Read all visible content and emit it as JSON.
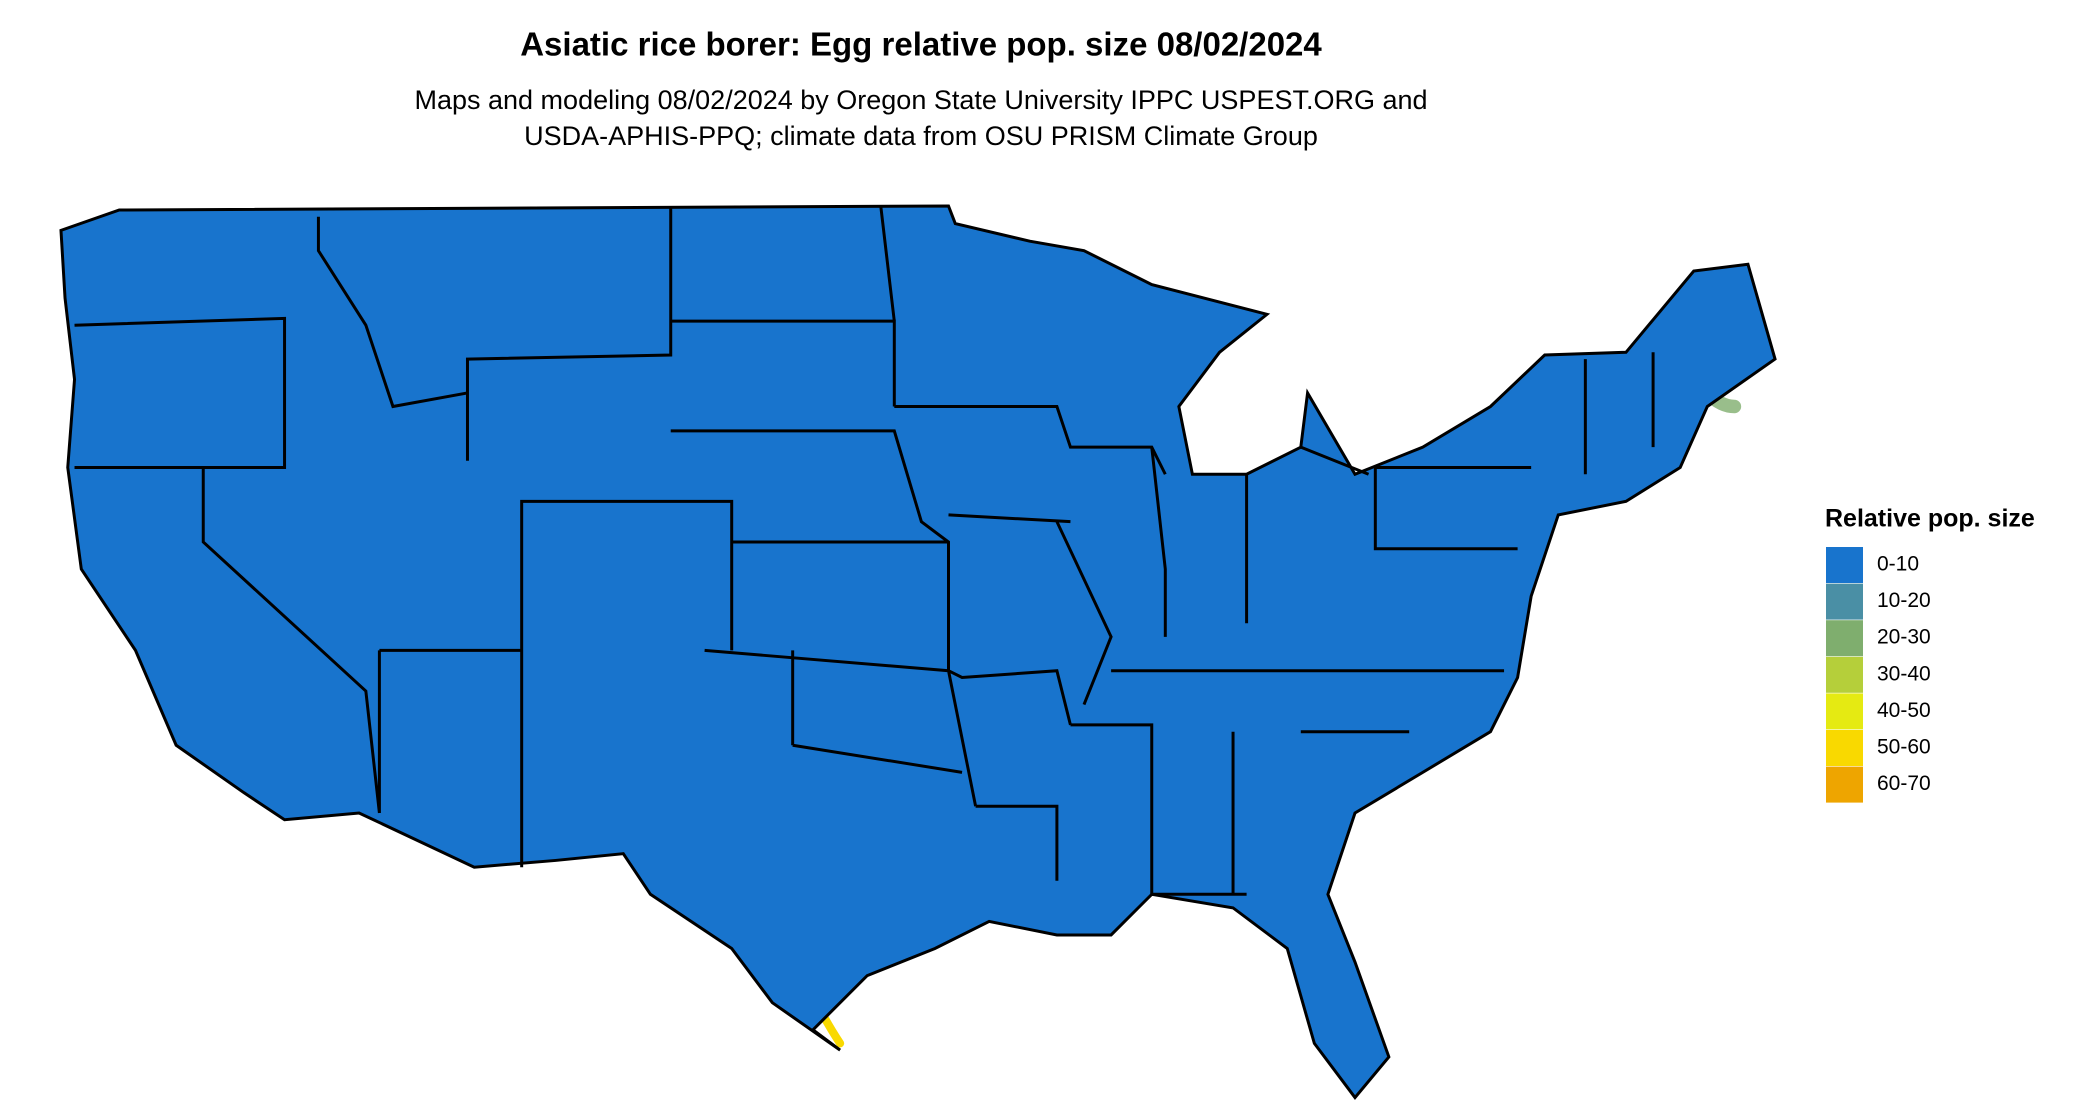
{
  "title": "Asiatic rice borer: Egg relative pop. size 08/02/2024",
  "subtitle": [
    "Maps and modeling 08/02/2024 by Oregon State University IPPC USPEST.ORG and",
    "USDA-APHIS-PPQ; climate data from OSU PRISM Climate Group"
  ],
  "legend": {
    "title": "Relative pop. size",
    "items": [
      {
        "label": "0-10",
        "color": "#1874cd"
      },
      {
        "label": "10-20",
        "color": "#4a8fa5"
      },
      {
        "label": "20-30",
        "color": "#7fae6e"
      },
      {
        "label": "30-40",
        "color": "#b5cf3a"
      },
      {
        "label": "40-50",
        "color": "#e5ea12"
      },
      {
        "label": "50-60",
        "color": "#f9d900"
      },
      {
        "label": "60-70",
        "color": "#eea500"
      }
    ]
  }
}
